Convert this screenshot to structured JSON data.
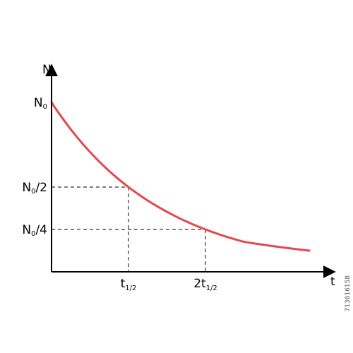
{
  "chart_data": {
    "type": "line",
    "title": "",
    "xlabel": "t",
    "ylabel": "N",
    "x": [
      0,
      0.5,
      1,
      1.5,
      2,
      2.5,
      3.35
    ],
    "series": [
      {
        "values": [
          1.0,
          0.707,
          0.5,
          0.354,
          0.25,
          0.177,
          0.125
        ]
      }
    ],
    "xlim": [
      0,
      3.6
    ],
    "ylim": [
      0,
      1.2
    ],
    "y_ticks": [
      {
        "label_main": "N",
        "label_sub": "0",
        "label_rest": "",
        "value": 1.0
      },
      {
        "label_main": "N",
        "label_sub": "0",
        "label_rest": "/2",
        "value": 0.5
      },
      {
        "label_main": "N",
        "label_sub": "0",
        "label_rest": "/4",
        "value": 0.25
      }
    ],
    "x_ticks": [
      {
        "label_main": "t",
        "label_sub": "1/2",
        "value": 1
      },
      {
        "label_main": "2t",
        "label_sub": "1/2",
        "value": 2
      }
    ],
    "grid": false,
    "guides": "dashed lines at half-life points",
    "colors": {
      "curve": "#e5474f",
      "axes": "#000000",
      "guides": "#333333"
    }
  },
  "stock_id": "713616158"
}
